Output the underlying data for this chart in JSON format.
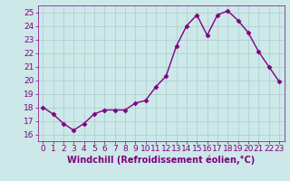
{
  "x": [
    0,
    1,
    2,
    3,
    4,
    5,
    6,
    7,
    8,
    9,
    10,
    11,
    12,
    13,
    14,
    15,
    16,
    17,
    18,
    19,
    20,
    21,
    22,
    23
  ],
  "y": [
    18.0,
    17.5,
    16.8,
    16.3,
    16.8,
    17.5,
    17.8,
    17.8,
    17.8,
    18.3,
    18.5,
    19.5,
    20.3,
    22.5,
    24.0,
    24.8,
    23.3,
    24.8,
    25.1,
    24.4,
    23.5,
    22.1,
    21.0,
    19.9
  ],
  "line_color": "#800080",
  "marker": "D",
  "marker_size": 2.5,
  "line_width": 1,
  "xlabel": "Windchill (Refroidissement éolien,°C)",
  "xlabel_fontsize": 7,
  "ylim": [
    15.5,
    25.5
  ],
  "xlim": [
    -0.5,
    23.5
  ],
  "yticks": [
    16,
    17,
    18,
    19,
    20,
    21,
    22,
    23,
    24,
    25
  ],
  "xticks": [
    0,
    1,
    2,
    3,
    4,
    5,
    6,
    7,
    8,
    9,
    10,
    11,
    12,
    13,
    14,
    15,
    16,
    17,
    18,
    19,
    20,
    21,
    22,
    23
  ],
  "background_color": "#cce8e8",
  "grid_color": "#aacccc",
  "tick_color": "#800080",
  "tick_fontsize": 6.5,
  "marker_color": "#800080",
  "spine_color": "#800080"
}
